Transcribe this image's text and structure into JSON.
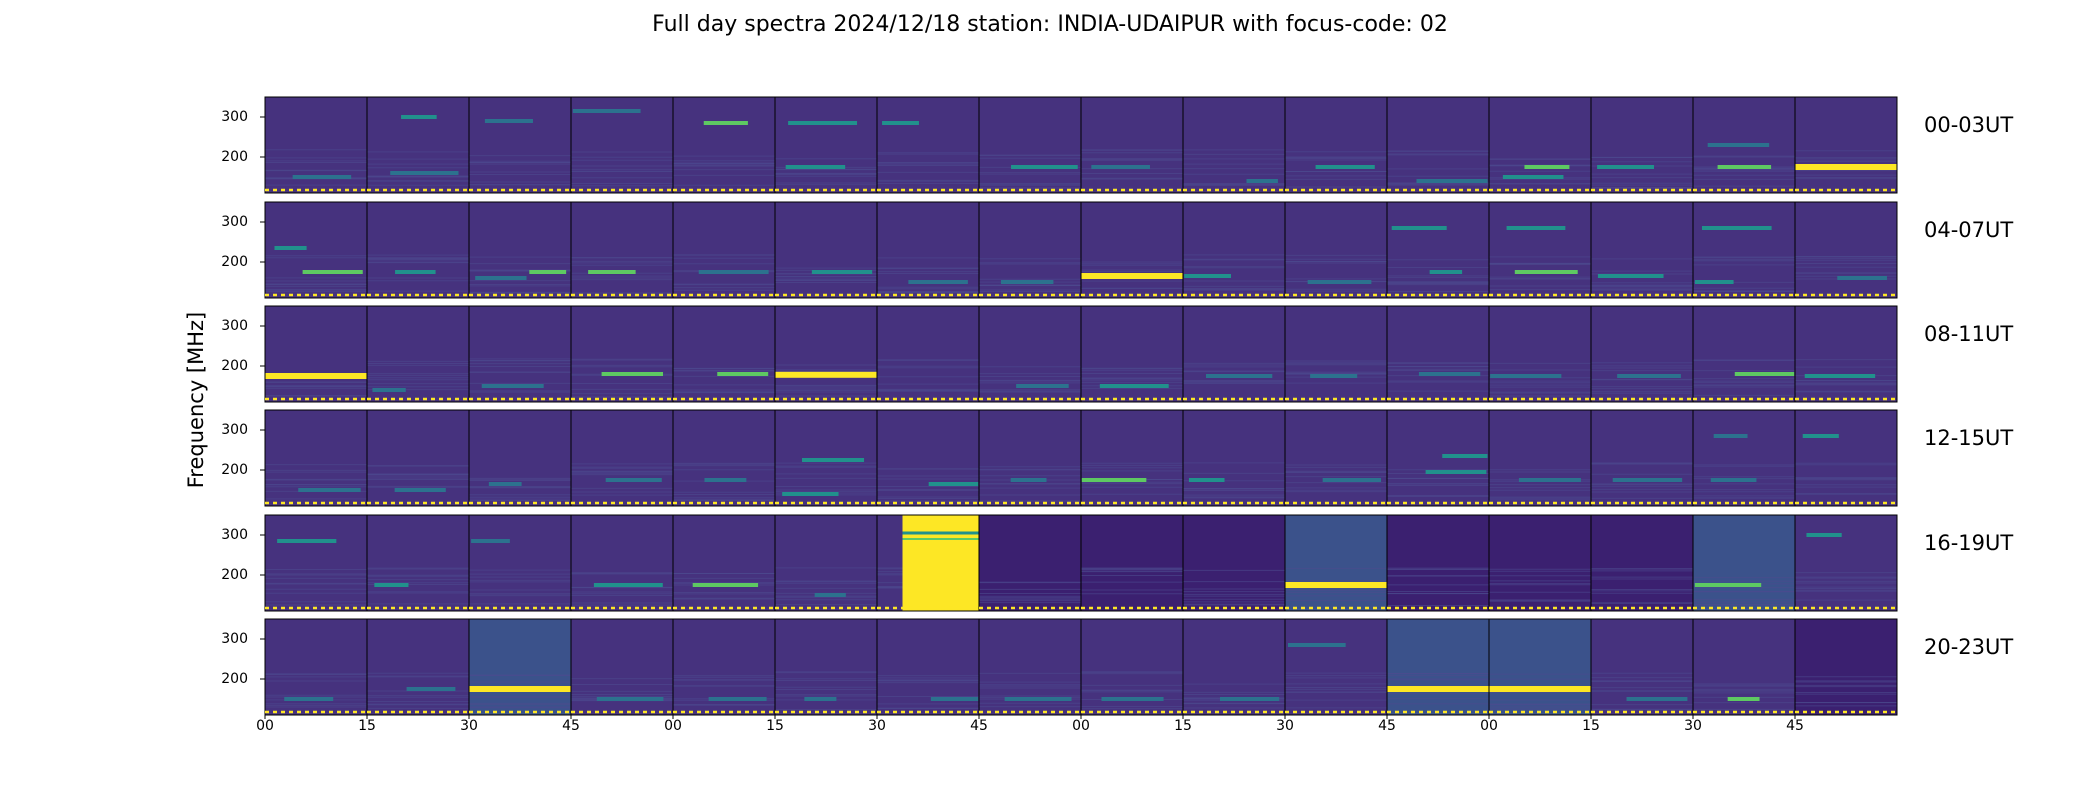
{
  "title": "Full day spectra 2024/12/18 station: INDIA-UDAIPUR with focus-code: 02",
  "chart_data": {
    "type": "heatmap",
    "title": "Full day spectra 2024/12/18 station: INDIA-UDAIPUR with focus-code: 02",
    "ylabel": "Frequency [MHz]",
    "xlabel": "",
    "ylim": [
      110,
      350
    ],
    "yticks": [
      200,
      300
    ],
    "xtick_labels": [
      "00",
      "15",
      "30",
      "45",
      "00",
      "15",
      "30",
      "45",
      "00",
      "15",
      "30",
      "45",
      "00",
      "15",
      "30",
      "45"
    ],
    "colormap": "viridis",
    "colors": {
      "background": "#46327e",
      "background_dark": "#3b2070",
      "line": "#21918c",
      "bright": "#5ec962",
      "saturated": "#fde725",
      "elevated": "#3b528b"
    },
    "rows": [
      {
        "label": "00-03UT",
        "panels": [
          {
            "bg": "normal",
            "bands": [
              {
                "f": 150,
                "i": 0.3
              }
            ]
          },
          {
            "bg": "normal",
            "bands": [
              {
                "f": 300,
                "i": 0.5
              },
              {
                "f": 160,
                "i": 0.25
              }
            ]
          },
          {
            "bg": "normal",
            "bands": [
              {
                "f": 290,
                "i": 0.3
              }
            ]
          },
          {
            "bg": "normal",
            "bands": [
              {
                "f": 315,
                "i": 0.3
              }
            ]
          },
          {
            "bg": "normal",
            "bands": [
              {
                "f": 285,
                "i": 0.6
              }
            ]
          },
          {
            "bg": "normal",
            "bands": [
              {
                "f": 285,
                "i": 0.5
              },
              {
                "f": 175,
                "i": 0.5
              }
            ]
          },
          {
            "bg": "normal",
            "bands": [
              {
                "f": 285,
                "i": 0.4
              }
            ]
          },
          {
            "bg": "normal",
            "bands": [
              {
                "f": 175,
                "i": 0.4
              }
            ]
          },
          {
            "bg": "normal",
            "bands": [
              {
                "f": 175,
                "i": 0.3
              }
            ]
          },
          {
            "bg": "normal",
            "bands": [
              {
                "f": 140,
                "i": 0.3
              }
            ]
          },
          {
            "bg": "normal",
            "bands": [
              {
                "f": 175,
                "i": 0.5
              }
            ]
          },
          {
            "bg": "normal",
            "bands": [
              {
                "f": 140,
                "i": 0.3
              }
            ]
          },
          {
            "bg": "normal",
            "bands": [
              {
                "f": 175,
                "i": 0.8
              },
              {
                "f": 150,
                "i": 0.5
              }
            ]
          },
          {
            "bg": "normal",
            "bands": [
              {
                "f": 175,
                "i": 0.5
              }
            ]
          },
          {
            "bg": "normal",
            "bands": [
              {
                "f": 175,
                "i": 0.6
              },
              {
                "f": 230,
                "i": 0.3
              }
            ]
          },
          {
            "bg": "normal",
            "bands": [
              {
                "f": 175,
                "i": 1.0
              }
            ]
          }
        ]
      },
      {
        "label": "04-07UT",
        "panels": [
          {
            "bg": "normal",
            "bands": [
              {
                "f": 175,
                "i": 0.6
              },
              {
                "f": 235,
                "i": 0.4
              }
            ]
          },
          {
            "bg": "normal",
            "bands": [
              {
                "f": 175,
                "i": 0.4
              }
            ]
          },
          {
            "bg": "normal",
            "bands": [
              {
                "f": 175,
                "i": 0.6
              },
              {
                "f": 160,
                "i": 0.3
              }
            ]
          },
          {
            "bg": "normal",
            "bands": [
              {
                "f": 175,
                "i": 0.6
              }
            ]
          },
          {
            "bg": "normal",
            "bands": [
              {
                "f": 175,
                "i": 0.3
              }
            ]
          },
          {
            "bg": "normal",
            "bands": [
              {
                "f": 175,
                "i": 0.4
              }
            ]
          },
          {
            "bg": "normal",
            "bands": [
              {
                "f": 150,
                "i": 0.3
              }
            ]
          },
          {
            "bg": "normal",
            "bands": [
              {
                "f": 150,
                "i": 0.2
              }
            ]
          },
          {
            "bg": "normal",
            "bands": [
              {
                "f": 165,
                "i": 1.0
              }
            ]
          },
          {
            "bg": "normal",
            "bands": [
              {
                "f": 165,
                "i": 0.4
              }
            ]
          },
          {
            "bg": "normal",
            "bands": [
              {
                "f": 150,
                "i": 0.3
              }
            ]
          },
          {
            "bg": "normal",
            "bands": [
              {
                "f": 285,
                "i": 0.4
              },
              {
                "f": 175,
                "i": 0.5
              }
            ]
          },
          {
            "bg": "normal",
            "bands": [
              {
                "f": 285,
                "i": 0.5
              },
              {
                "f": 175,
                "i": 0.7
              }
            ]
          },
          {
            "bg": "normal",
            "bands": [
              {
                "f": 165,
                "i": 0.5
              }
            ]
          },
          {
            "bg": "normal",
            "bands": [
              {
                "f": 285,
                "i": 0.4
              },
              {
                "f": 150,
                "i": 0.4
              }
            ]
          },
          {
            "bg": "normal",
            "bands": [
              {
                "f": 160,
                "i": 0.3
              }
            ]
          }
        ]
      },
      {
        "label": "08-11UT",
        "panels": [
          {
            "bg": "normal",
            "bands": [
              {
                "f": 175,
                "i": 1.0
              }
            ]
          },
          {
            "bg": "normal",
            "bands": [
              {
                "f": 140,
                "i": 0.3
              }
            ]
          },
          {
            "bg": "normal",
            "bands": [
              {
                "f": 150,
                "i": 0.3
              }
            ]
          },
          {
            "bg": "normal",
            "bands": [
              {
                "f": 180,
                "i": 0.7
              }
            ]
          },
          {
            "bg": "normal",
            "bands": [
              {
                "f": 180,
                "i": 0.6
              }
            ]
          },
          {
            "bg": "normal",
            "bands": [
              {
                "f": 178,
                "i": 0.9
              }
            ]
          },
          {
            "bg": "normal",
            "bands": []
          },
          {
            "bg": "normal",
            "bands": [
              {
                "f": 150,
                "i": 0.2
              }
            ]
          },
          {
            "bg": "normal",
            "bands": [
              {
                "f": 150,
                "i": 0.4
              }
            ]
          },
          {
            "bg": "normal",
            "bands": [
              {
                "f": 175,
                "i": 0.3
              }
            ]
          },
          {
            "bg": "normal",
            "bands": [
              {
                "f": 175,
                "i": 0.3
              }
            ]
          },
          {
            "bg": "normal",
            "bands": [
              {
                "f": 180,
                "i": 0.3
              }
            ]
          },
          {
            "bg": "normal",
            "bands": [
              {
                "f": 175,
                "i": 0.3
              }
            ]
          },
          {
            "bg": "normal",
            "bands": [
              {
                "f": 175,
                "i": 0.3
              }
            ]
          },
          {
            "bg": "normal",
            "bands": [
              {
                "f": 180,
                "i": 0.6
              }
            ]
          },
          {
            "bg": "normal",
            "bands": [
              {
                "f": 175,
                "i": 0.5
              }
            ]
          }
        ]
      },
      {
        "label": "12-15UT",
        "panels": [
          {
            "bg": "normal",
            "bands": [
              {
                "f": 150,
                "i": 0.3
              }
            ]
          },
          {
            "bg": "normal",
            "bands": [
              {
                "f": 150,
                "i": 0.2
              }
            ]
          },
          {
            "bg": "normal",
            "bands": [
              {
                "f": 165,
                "i": 0.3
              }
            ]
          },
          {
            "bg": "normal",
            "bands": [
              {
                "f": 175,
                "i": 0.3
              }
            ]
          },
          {
            "bg": "normal",
            "bands": [
              {
                "f": 175,
                "i": 0.3
              }
            ]
          },
          {
            "bg": "normal",
            "bands": [
              {
                "f": 225,
                "i": 0.5
              },
              {
                "f": 140,
                "i": 0.5
              }
            ]
          },
          {
            "bg": "normal",
            "bands": [
              {
                "f": 165,
                "i": 0.4
              }
            ]
          },
          {
            "bg": "normal",
            "bands": [
              {
                "f": 175,
                "i": 0.3
              }
            ]
          },
          {
            "bg": "normal",
            "bands": [
              {
                "f": 175,
                "i": 0.7
              }
            ]
          },
          {
            "bg": "normal",
            "bands": [
              {
                "f": 175,
                "i": 0.5
              }
            ]
          },
          {
            "bg": "normal",
            "bands": [
              {
                "f": 175,
                "i": 0.3
              }
            ]
          },
          {
            "bg": "normal",
            "bands": [
              {
                "f": 235,
                "i": 0.5
              },
              {
                "f": 195,
                "i": 0.4
              }
            ]
          },
          {
            "bg": "normal",
            "bands": [
              {
                "f": 175,
                "i": 0.3
              }
            ]
          },
          {
            "bg": "normal",
            "bands": [
              {
                "f": 175,
                "i": 0.3
              }
            ]
          },
          {
            "bg": "normal",
            "bands": [
              {
                "f": 285,
                "i": 0.3
              },
              {
                "f": 175,
                "i": 0.3
              }
            ]
          },
          {
            "bg": "normal",
            "bands": [
              {
                "f": 285,
                "i": 0.5
              }
            ]
          }
        ]
      },
      {
        "label": "16-19UT",
        "panels": [
          {
            "bg": "normal",
            "bands": [
              {
                "f": 285,
                "i": 0.5
              }
            ]
          },
          {
            "bg": "normal",
            "bands": [
              {
                "f": 175,
                "i": 0.4
              }
            ]
          },
          {
            "bg": "normal",
            "bands": [
              {
                "f": 285,
                "i": 0.3
              }
            ]
          },
          {
            "bg": "normal",
            "bands": [
              {
                "f": 175,
                "i": 0.5
              }
            ]
          },
          {
            "bg": "normal",
            "bands": [
              {
                "f": 175,
                "i": 0.7
              }
            ]
          },
          {
            "bg": "normal",
            "bands": [
              {
                "f": 150,
                "i": 0.2
              }
            ]
          },
          {
            "bg": "saturated",
            "start": 0.25,
            "bands": []
          },
          {
            "bg": "dark",
            "bands": []
          },
          {
            "bg": "dark",
            "bands": []
          },
          {
            "bg": "dark",
            "bands": []
          },
          {
            "bg": "elevated",
            "bands": [
              {
                "f": 175,
                "i": 1.0
              }
            ]
          },
          {
            "bg": "dark",
            "bands": []
          },
          {
            "bg": "dark",
            "bands": []
          },
          {
            "bg": "dark",
            "bands": []
          },
          {
            "bg": "elevated",
            "bands": [
              {
                "f": 175,
                "i": 0.7
              }
            ]
          },
          {
            "bg": "normal",
            "bands": [
              {
                "f": 300,
                "i": 0.4
              }
            ]
          }
        ]
      },
      {
        "label": "20-23UT",
        "panels": [
          {
            "bg": "normal",
            "bands": [
              {
                "f": 150,
                "i": 0.2
              }
            ]
          },
          {
            "bg": "normal",
            "bands": [
              {
                "f": 175,
                "i": 0.3
              }
            ]
          },
          {
            "bg": "elevated",
            "bands": [
              {
                "f": 175,
                "i": 1.0
              }
            ]
          },
          {
            "bg": "normal",
            "bands": [
              {
                "f": 150,
                "i": 0.2
              }
            ]
          },
          {
            "bg": "normal",
            "bands": [
              {
                "f": 150,
                "i": 0.2
              }
            ]
          },
          {
            "bg": "normal",
            "bands": [
              {
                "f": 150,
                "i": 0.2
              }
            ]
          },
          {
            "bg": "normal",
            "bands": [
              {
                "f": 150,
                "i": 0.2
              }
            ]
          },
          {
            "bg": "normal",
            "bands": [
              {
                "f": 150,
                "i": 0.2
              }
            ]
          },
          {
            "bg": "normal",
            "bands": [
              {
                "f": 150,
                "i": 0.2
              }
            ]
          },
          {
            "bg": "normal",
            "bands": [
              {
                "f": 150,
                "i": 0.2
              }
            ]
          },
          {
            "bg": "normal",
            "bands": [
              {
                "f": 285,
                "i": 0.3
              }
            ]
          },
          {
            "bg": "elevated",
            "bands": [
              {
                "f": 175,
                "i": 1.0
              }
            ]
          },
          {
            "bg": "elevated",
            "bands": [
              {
                "f": 175,
                "i": 1.0
              }
            ]
          },
          {
            "bg": "normal",
            "bands": [
              {
                "f": 150,
                "i": 0.2
              }
            ]
          },
          {
            "bg": "normal",
            "bands": [
              {
                "f": 150,
                "i": 0.7
              }
            ]
          },
          {
            "bg": "dark",
            "bands": []
          }
        ]
      }
    ]
  }
}
